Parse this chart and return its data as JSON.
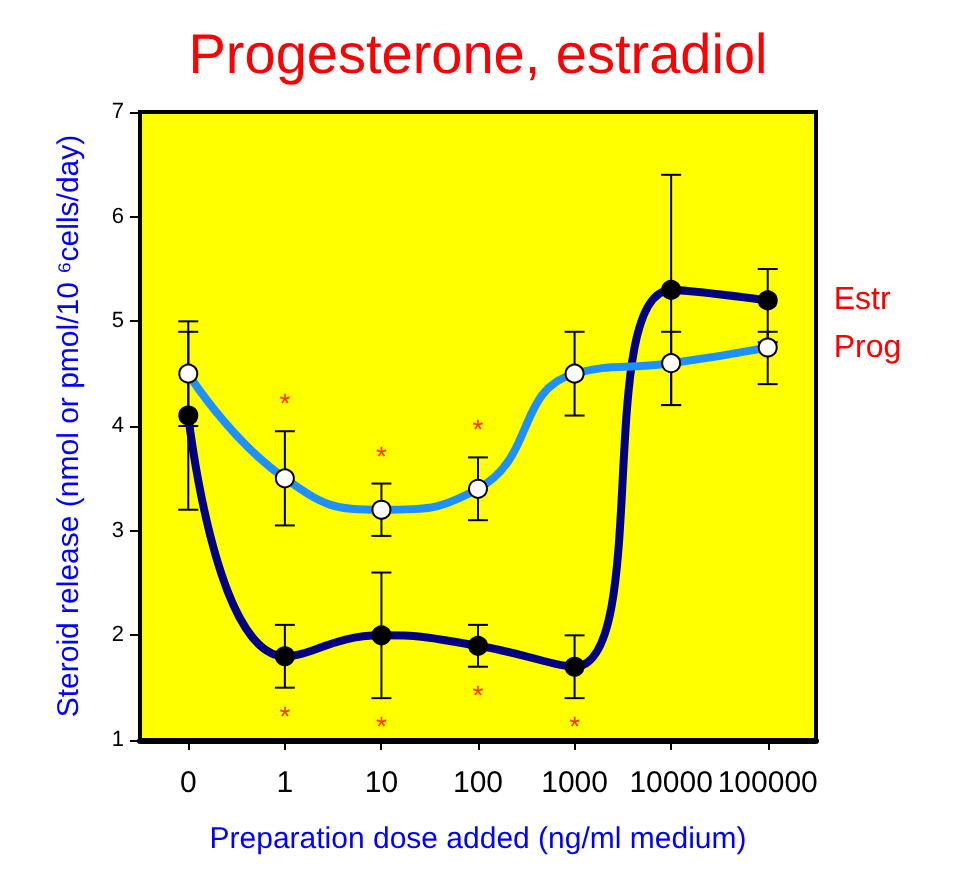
{
  "chart_data": {
    "type": "line",
    "title": "Progesterone, estradiol",
    "xlabel": "Preparation dose added (ng/ml medium)",
    "ylabel": "Steroid release (nmol or pmol/10 ⁶cells/day)",
    "categories": [
      "0",
      "1",
      "10",
      "100",
      "1000",
      "10000",
      "100000"
    ],
    "series": [
      {
        "name": "Estr",
        "color": "#000080",
        "values": [
          4.1,
          1.8,
          2.0,
          1.9,
          1.7,
          5.3,
          5.2
        ],
        "errors": [
          [
            3.2,
            4.9
          ],
          [
            1.5,
            2.1
          ],
          [
            1.4,
            2.6
          ],
          [
            1.7,
            2.1
          ],
          [
            1.4,
            2.0
          ],
          [
            4.2,
            6.4
          ],
          [
            4.8,
            5.5
          ]
        ]
      },
      {
        "name": "Prog",
        "color": "#1e90ff",
        "values": [
          4.5,
          3.5,
          3.2,
          3.4,
          4.5,
          4.6,
          4.75
        ],
        "errors": [
          [
            4.0,
            5.0
          ],
          [
            3.05,
            3.95
          ],
          [
            2.95,
            3.45
          ],
          [
            3.1,
            3.7
          ],
          [
            4.1,
            4.9
          ],
          [
            4.2,
            4.9
          ],
          [
            4.4,
            4.9
          ]
        ]
      }
    ],
    "ylim": [
      1,
      7
    ],
    "yticks": [
      1,
      2,
      3,
      4,
      5,
      6,
      7
    ],
    "grid": false,
    "marker": "circle",
    "line_style": "solid",
    "annotations": [
      {
        "text": "*",
        "x": "1",
        "y": 3.95
      },
      {
        "text": "*",
        "x": "10",
        "y": 3.45
      },
      {
        "text": "*",
        "x": "100",
        "y": 3.7
      },
      {
        "text": "*",
        "x": "1",
        "y": 1.5
      },
      {
        "text": "*",
        "x": "10",
        "y": 1.4
      },
      {
        "text": "*",
        "x": "100",
        "y": 1.7
      },
      {
        "text": "*",
        "x": "1000",
        "y": 1.4
      }
    ]
  }
}
